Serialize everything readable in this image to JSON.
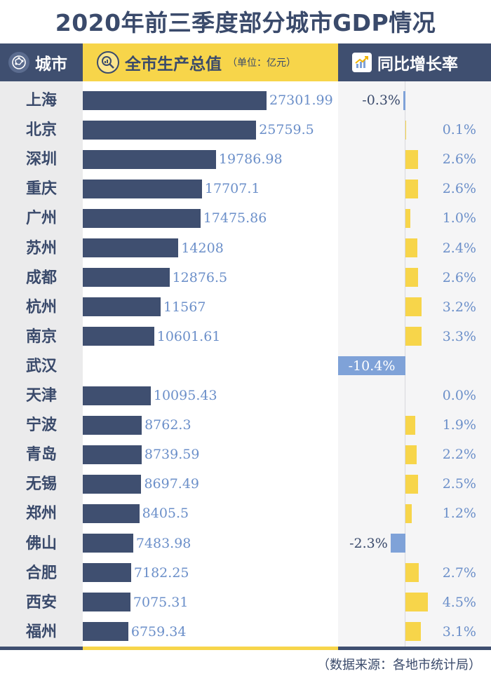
{
  "title": "2020年前三季度部分城市GDP情况",
  "header": {
    "city_label": "城市",
    "gdp_label": "全市生产总值",
    "gdp_unit": "（单位：亿元）",
    "growth_label": "同比增长率"
  },
  "source": "（数据来源：各地市统计局）",
  "colors": {
    "navy": "#3f4f70",
    "yellow": "#f7d54a",
    "light_blue": "#7fa2d8",
    "value_text": "#6b8fc9"
  },
  "chart_data": {
    "type": "bar",
    "title": "2020年前三季度部分城市GDP情况",
    "xlabel": "",
    "ylabel": "",
    "series": [
      {
        "name": "全市生产总值（亿元）",
        "values": [
          27301.99,
          25759.5,
          19786.98,
          17707.1,
          17475.86,
          14208,
          12876.5,
          11567,
          10601.61,
          null,
          10095.43,
          8762.3,
          8739.59,
          8697.49,
          8405.5,
          7483.98,
          7182.25,
          7075.31,
          6759.34
        ],
        "labels": [
          "27301.99",
          "25759.5",
          "19786.98",
          "17707.1",
          "17475.86",
          "14208",
          "12876.5",
          "11567",
          "10601.61",
          "",
          "10095.43",
          "8762.3",
          "8739.59",
          "8697.49",
          "8405.5",
          "7483.98",
          "7182.25",
          "7075.31",
          "6759.34"
        ]
      },
      {
        "name": "同比增长率（%）",
        "values": [
          -0.3,
          0.1,
          2.6,
          2.6,
          1.0,
          2.4,
          2.6,
          3.2,
          3.3,
          -10.4,
          0.0,
          1.9,
          2.2,
          2.5,
          1.2,
          -2.3,
          2.7,
          4.5,
          3.1
        ],
        "labels": [
          "-0.3%",
          "0.1%",
          "2.6%",
          "2.6%",
          "1.0%",
          "2.4%",
          "2.6%",
          "3.2%",
          "3.3%",
          "-10.4%",
          "0.0%",
          "1.9%",
          "2.2%",
          "2.5%",
          "1.2%",
          "-2.3%",
          "2.7%",
          "4.5%",
          "3.1%"
        ]
      }
    ],
    "categories": [
      "上海",
      "北京",
      "深圳",
      "重庆",
      "广州",
      "苏州",
      "成都",
      "杭州",
      "南京",
      "武汉",
      "天津",
      "宁波",
      "青岛",
      "无锡",
      "郑州",
      "佛山",
      "合肥",
      "西安",
      "福州"
    ],
    "gdp_xlim": [
      0,
      27301.99
    ],
    "growth_xlim": [
      -10.4,
      4.5
    ]
  }
}
